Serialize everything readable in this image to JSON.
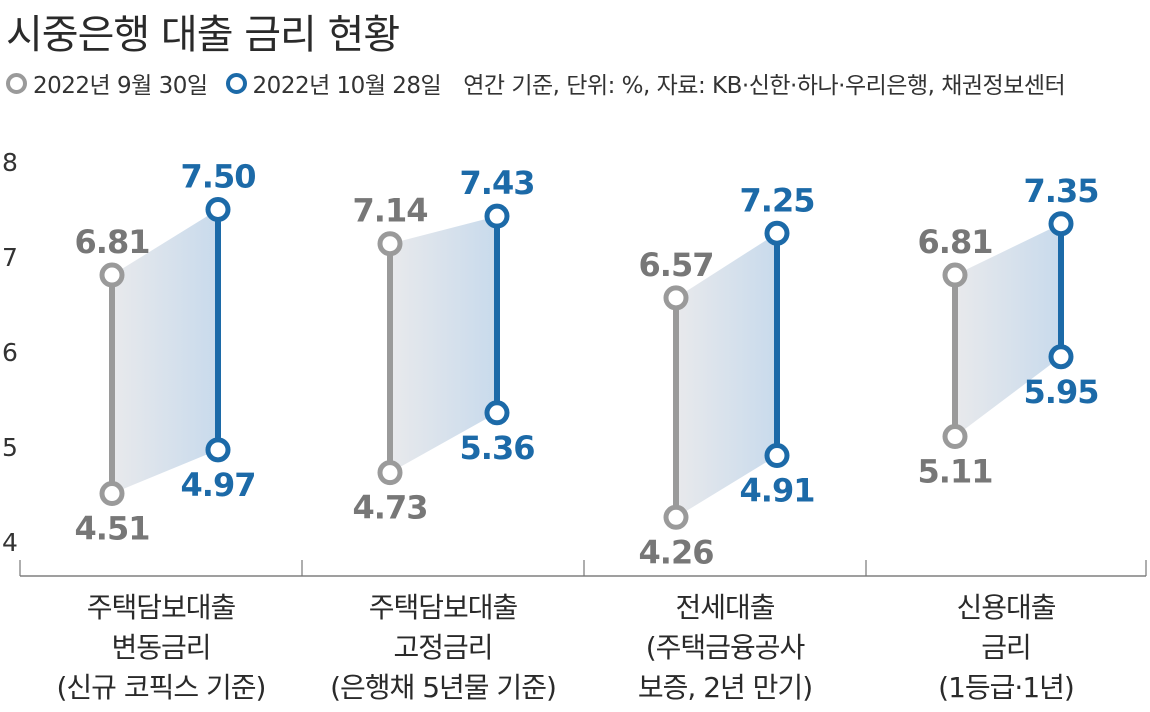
{
  "title": "시중은행 대출 금리 현황",
  "legend": {
    "items": [
      {
        "label": "2022년 9월 30일",
        "color": "#9a9a9a"
      },
      {
        "label": "2022년 10월 28일",
        "color": "#1c6aa8"
      }
    ],
    "note": "연간 기준, 단위: %, 자료: KB·신한·하나·우리은행,  채권정보센터"
  },
  "chart_data": {
    "type": "range",
    "ylim": [
      4,
      8
    ],
    "yticks": [
      8,
      7,
      6,
      5,
      4
    ],
    "series": [
      {
        "name": "2022년 9월 30일",
        "color": "#9a9a9a"
      },
      {
        "name": "2022년 10월 28일",
        "color": "#1c6aa8"
      }
    ],
    "categories": [
      {
        "lines": [
          "주택담보대출",
          "변동금리",
          "(신규 코픽스 기준)"
        ],
        "sep_high": 6.81,
        "sep_low": 4.51,
        "oct_high": 7.5,
        "oct_low": 4.97,
        "sep_high_label": "6.81",
        "sep_low_label": "4.51",
        "oct_high_label": "7.50",
        "oct_low_label": "4.97"
      },
      {
        "lines": [
          "주택담보대출",
          "고정금리",
          "(은행채 5년물 기준)"
        ],
        "sep_high": 7.14,
        "sep_low": 4.73,
        "oct_high": 7.43,
        "oct_low": 5.36,
        "sep_high_label": "7.14",
        "sep_low_label": "4.73",
        "oct_high_label": "7.43",
        "oct_low_label": "5.36"
      },
      {
        "lines": [
          "전세대출",
          "(주택금융공사",
          "보증, 2년 만기)"
        ],
        "sep_high": 6.57,
        "sep_low": 4.26,
        "oct_high": 7.25,
        "oct_low": 4.91,
        "sep_high_label": "6.57",
        "sep_low_label": "4.26",
        "oct_high_label": "7.25",
        "oct_low_label": "4.91"
      },
      {
        "lines": [
          "신용대출",
          "금리",
          "(1등급·1년)"
        ],
        "sep_high": 6.81,
        "sep_low": 5.11,
        "oct_high": 7.35,
        "oct_low": 5.95,
        "sep_high_label": "6.81",
        "sep_low_label": "5.11",
        "oct_high_label": "7.35",
        "oct_low_label": "5.95"
      }
    ]
  }
}
